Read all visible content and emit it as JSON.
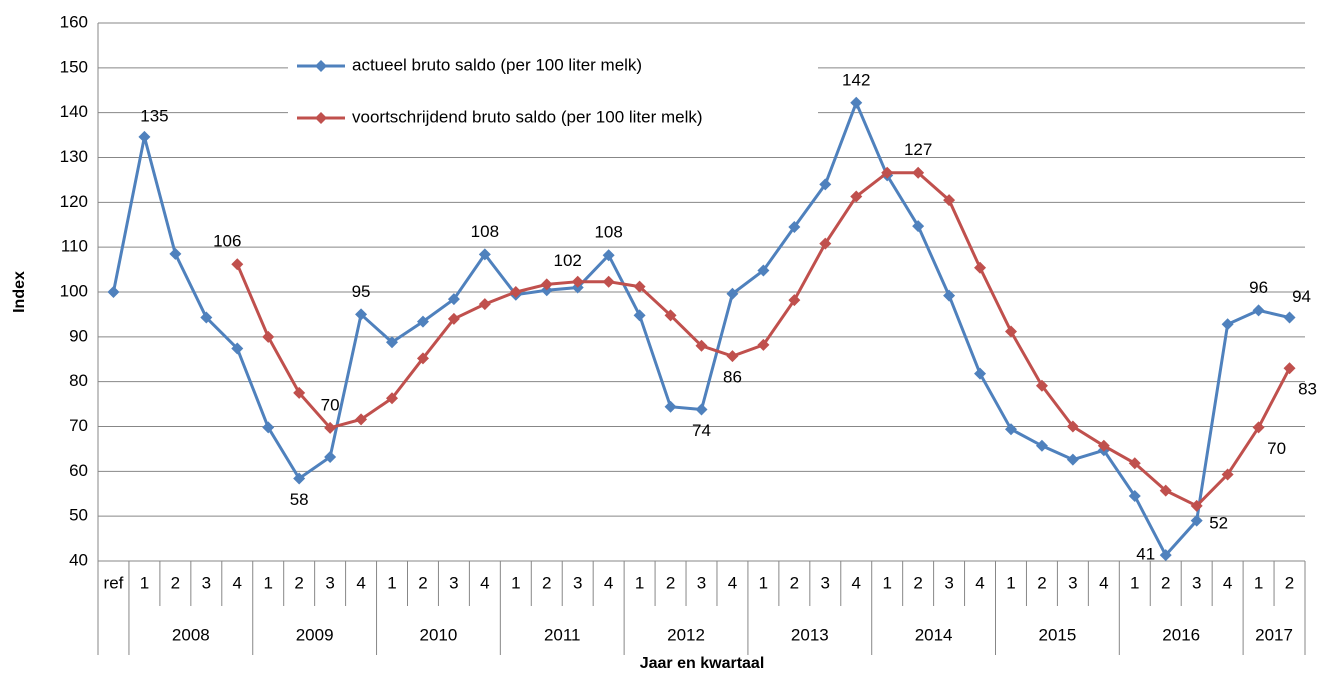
{
  "chart_data": {
    "type": "line",
    "x_label": "Jaar en kwartaal",
    "y_label": "Index",
    "categories": [
      "ref",
      "1",
      "2",
      "3",
      "4",
      "1",
      "2",
      "3",
      "4",
      "1",
      "2",
      "3",
      "4",
      "1",
      "2",
      "3",
      "4",
      "1",
      "2",
      "3",
      "4",
      "1",
      "2",
      "3",
      "4",
      "1",
      "2",
      "3",
      "4",
      "1",
      "2",
      "3",
      "4",
      "1",
      "2",
      "3",
      "4",
      "1",
      "2"
    ],
    "groups": [
      {
        "label": "2008",
        "size": 4
      },
      {
        "label": "2009",
        "size": 4
      },
      {
        "label": "2010",
        "size": 4
      },
      {
        "label": "2011",
        "size": 4
      },
      {
        "label": "2012",
        "size": 4
      },
      {
        "label": "2013",
        "size": 4
      },
      {
        "label": "2014",
        "size": 4
      },
      {
        "label": "2015",
        "size": 4
      },
      {
        "label": "2016",
        "size": 4
      },
      {
        "label": "2017",
        "size": 2
      }
    ],
    "series": [
      {
        "name": "actueel bruto saldo (per 100 liter melk)",
        "color": "#4f81bd",
        "values": [
          100,
          134.6,
          108.5,
          94.3,
          87.4,
          69.8,
          58.4,
          63.2,
          95,
          88.8,
          93.4,
          98.4,
          108.4,
          99.4,
          100.4,
          101.0,
          108.2,
          94.8,
          74.4,
          73.8,
          99.6,
          104.8,
          114.5,
          124,
          142.2,
          126,
          114.7,
          99.2,
          81.8,
          69.4,
          65.7,
          62.6,
          64.7,
          54.5,
          41.3,
          49,
          92.8,
          95.9,
          94.3
        ],
        "value_labels": [
          null,
          "135",
          null,
          null,
          null,
          null,
          "58",
          null,
          "95",
          null,
          null,
          null,
          "108",
          null,
          null,
          null,
          "108",
          null,
          null,
          "74",
          null,
          null,
          null,
          null,
          "142",
          null,
          null,
          null,
          null,
          null,
          null,
          null,
          null,
          null,
          "41",
          null,
          null,
          "96",
          "94"
        ]
      },
      {
        "name": "voortschrijdend bruto saldo (per 100 liter melk)",
        "color": "#c0504d",
        "values": [
          null,
          null,
          null,
          null,
          106.2,
          90,
          77.5,
          69.7,
          71.6,
          76.3,
          85.2,
          94,
          97.3,
          100,
          101.7,
          102.3,
          102.3,
          101.2,
          94.8,
          88,
          85.7,
          88.2,
          98.2,
          110.8,
          121.3,
          126.6,
          126.6,
          120.5,
          105.4,
          91.2,
          79.1,
          70,
          65.7,
          61.8,
          55.7,
          52.3,
          59.3,
          69.8,
          83
        ],
        "value_labels": [
          null,
          null,
          null,
          null,
          "106",
          null,
          null,
          "70",
          null,
          null,
          null,
          null,
          null,
          null,
          null,
          "102",
          null,
          null,
          null,
          null,
          "86",
          null,
          null,
          null,
          null,
          null,
          "127",
          null,
          null,
          null,
          null,
          null,
          null,
          null,
          null,
          "52",
          null,
          "70",
          "83"
        ]
      }
    ],
    "ylim": [
      40,
      160
    ],
    "yticks": [
      40,
      50,
      60,
      70,
      80,
      90,
      100,
      110,
      120,
      130,
      140,
      150,
      160
    ],
    "grid": true
  }
}
